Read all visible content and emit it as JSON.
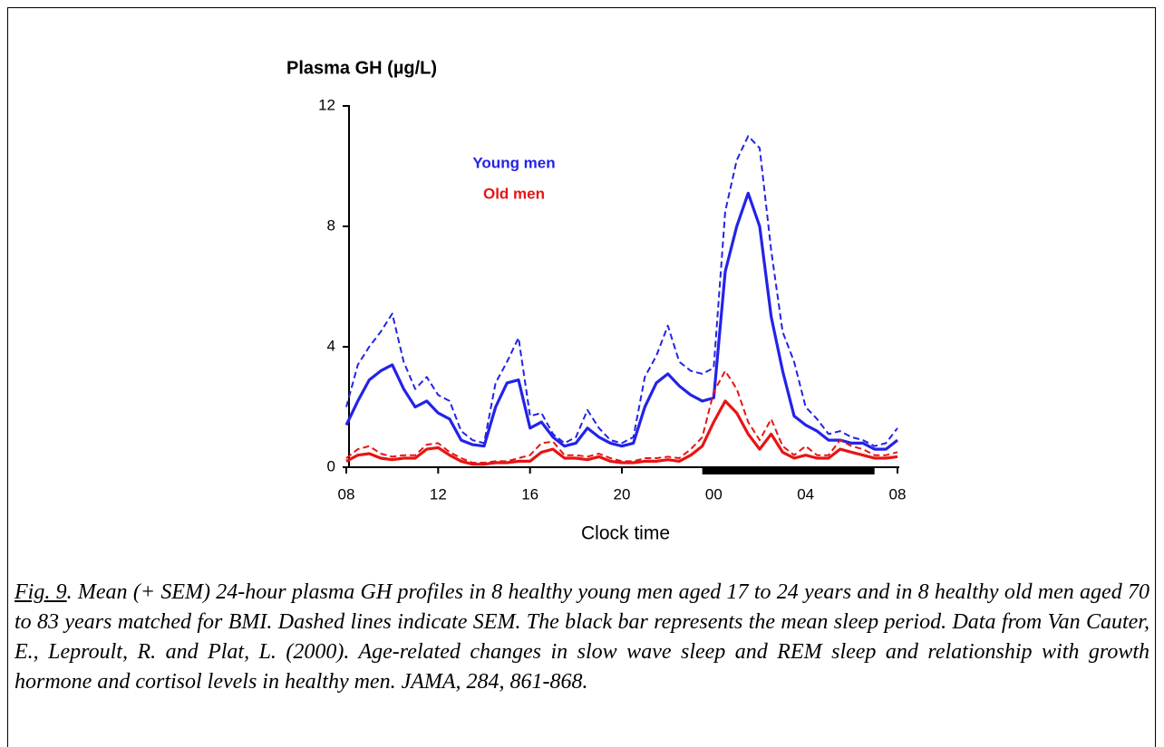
{
  "chart_data": {
    "type": "line",
    "ylabel": "Plasma GH (µg/L)",
    "xlabel": "Clock time",
    "xlim": [
      0,
      24
    ],
    "xticks": [
      {
        "value": 0,
        "label": "08"
      },
      {
        "value": 4,
        "label": "12"
      },
      {
        "value": 8,
        "label": "16"
      },
      {
        "value": 12,
        "label": "20"
      },
      {
        "value": 16,
        "label": "00"
      },
      {
        "value": 20,
        "label": "04"
      },
      {
        "value": 24,
        "label": "08"
      }
    ],
    "ylim": [
      0,
      12
    ],
    "yticks": [
      0,
      4,
      8,
      12
    ],
    "sleep_period": [
      15.5,
      23
    ],
    "x": [
      0,
      0.5,
      1,
      1.5,
      2,
      2.5,
      3,
      3.5,
      4,
      4.5,
      5,
      5.5,
      6,
      6.5,
      7,
      7.5,
      8,
      8.5,
      9,
      9.5,
      10,
      10.5,
      11,
      11.5,
      12,
      12.5,
      13,
      13.5,
      14,
      14.5,
      15,
      15.5,
      16,
      16.5,
      17,
      17.5,
      18,
      18.5,
      19,
      19.5,
      20,
      20.5,
      21,
      21.5,
      22,
      22.5,
      23,
      23.5,
      24
    ],
    "series": [
      {
        "name": "Young men",
        "color": "#2323e8",
        "values": [
          1.4,
          2.2,
          2.9,
          3.2,
          3.4,
          2.6,
          2.0,
          2.2,
          1.8,
          1.6,
          0.9,
          0.75,
          0.7,
          2.0,
          2.8,
          2.9,
          1.3,
          1.5,
          1.0,
          0.7,
          0.8,
          1.3,
          1.0,
          0.8,
          0.7,
          0.8,
          2.0,
          2.8,
          3.1,
          2.7,
          2.4,
          2.2,
          2.3,
          6.5,
          8.0,
          9.1,
          8.0,
          5.0,
          3.2,
          1.7,
          1.4,
          1.2,
          0.9,
          0.9,
          0.8,
          0.8,
          0.6,
          0.6,
          0.9
        ],
        "upper": [
          2.0,
          3.4,
          4.0,
          4.5,
          5.1,
          3.5,
          2.6,
          3.0,
          2.4,
          2.2,
          1.2,
          0.9,
          0.8,
          2.8,
          3.5,
          4.3,
          1.7,
          1.8,
          1.1,
          0.8,
          1.0,
          1.9,
          1.3,
          0.9,
          0.8,
          1.0,
          3.0,
          3.7,
          4.7,
          3.5,
          3.2,
          3.1,
          3.3,
          8.5,
          10.2,
          11.0,
          10.6,
          7.2,
          4.5,
          3.5,
          2.0,
          1.6,
          1.1,
          1.2,
          1.0,
          0.9,
          0.7,
          0.8,
          1.3
        ]
      },
      {
        "name": "Old men",
        "color": "#e81414",
        "values": [
          0.2,
          0.4,
          0.45,
          0.3,
          0.25,
          0.3,
          0.3,
          0.6,
          0.65,
          0.4,
          0.2,
          0.1,
          0.1,
          0.15,
          0.15,
          0.2,
          0.2,
          0.5,
          0.6,
          0.3,
          0.3,
          0.25,
          0.35,
          0.2,
          0.15,
          0.15,
          0.2,
          0.2,
          0.25,
          0.2,
          0.4,
          0.7,
          1.5,
          2.2,
          1.8,
          1.1,
          0.6,
          1.1,
          0.5,
          0.3,
          0.4,
          0.3,
          0.3,
          0.6,
          0.5,
          0.4,
          0.3,
          0.3,
          0.35
        ],
        "upper": [
          0.3,
          0.6,
          0.7,
          0.45,
          0.35,
          0.4,
          0.4,
          0.75,
          0.8,
          0.5,
          0.3,
          0.15,
          0.15,
          0.2,
          0.2,
          0.3,
          0.4,
          0.8,
          0.85,
          0.4,
          0.4,
          0.35,
          0.45,
          0.3,
          0.2,
          0.2,
          0.3,
          0.3,
          0.35,
          0.3,
          0.6,
          1.0,
          2.5,
          3.2,
          2.6,
          1.5,
          0.9,
          1.6,
          0.7,
          0.4,
          0.7,
          0.4,
          0.4,
          0.9,
          0.7,
          0.6,
          0.4,
          0.4,
          0.5
        ]
      }
    ]
  },
  "caption": {
    "fig_label": "Fig. 9",
    "text": ". Mean (+ SEM) 24-hour plasma GH profiles in 8 healthy young men aged 17 to 24 years and in 8 healthy old men aged 70 to 83 years matched for BMI. Dashed lines indicate SEM. The black bar represents the mean sleep period. Data from Van Cauter, E., Leproult, R. and Plat, L. (2000). Age-related changes in slow wave sleep and REM sleep and relationship with growth hormone and cortisol levels in healthy men. JAMA, 284, 861-868."
  }
}
